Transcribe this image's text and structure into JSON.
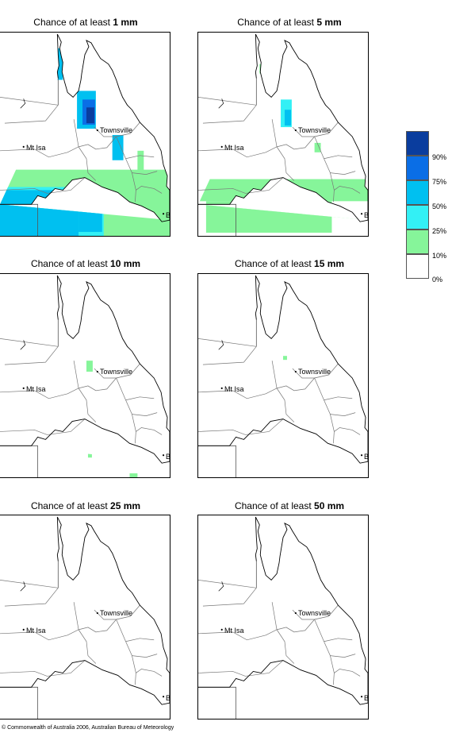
{
  "panels": [
    {
      "prefix": "Chance of at least ",
      "amount": "1 mm"
    },
    {
      "prefix": "Chance of at least ",
      "amount": "5 mm"
    },
    {
      "prefix": "Chance of at least ",
      "amount": "10 mm"
    },
    {
      "prefix": "Chance of at least ",
      "amount": "15 mm"
    },
    {
      "prefix": "Chance of at least ",
      "amount": "25 mm"
    },
    {
      "prefix": "Chance of at least ",
      "amount": "50 mm"
    }
  ],
  "places": {
    "townsville": "Townsville",
    "mt_isa": "Mt Isa",
    "bris": "BRIS"
  },
  "legend": {
    "labels": [
      "90%",
      "75%",
      "50%",
      "25%",
      "10%",
      "0%"
    ],
    "colors": [
      "#0a3d9e",
      "#0a6ee6",
      "#00c0f0",
      "#33f0f5",
      "#86f59a",
      "#ffffff"
    ]
  },
  "copyright": "© Commonwealth of Australia 2006, Australian Bureau of Meteorology"
}
